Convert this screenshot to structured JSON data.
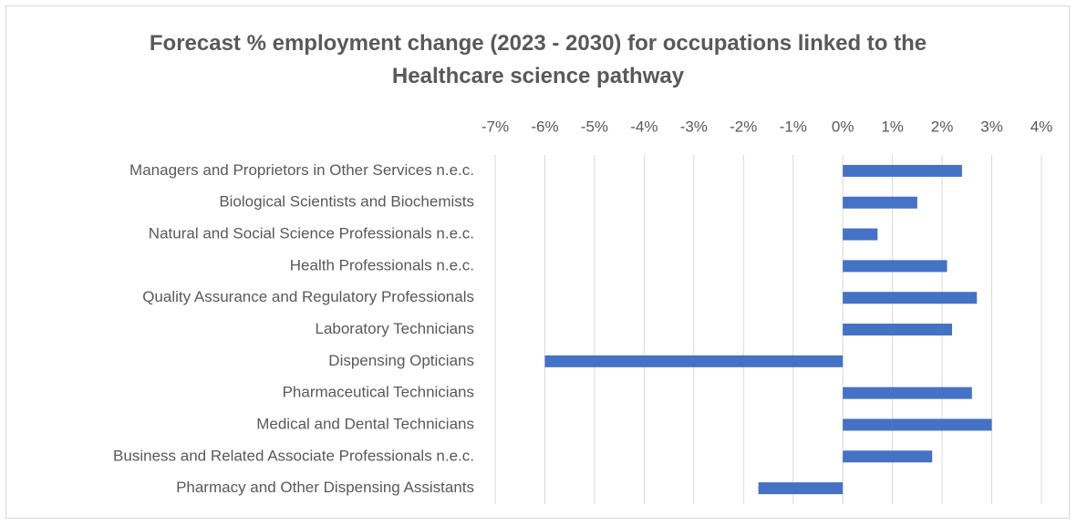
{
  "chart_data": {
    "type": "barh",
    "title": "Forecast % employment change (2023 - 2030) for occupations linked to the Healthcare science pathway",
    "categories": [
      "Managers and Proprietors in Other Services n.e.c.",
      "Biological Scientists and Biochemists",
      "Natural and Social Science Professionals n.e.c.",
      "Health Professionals n.e.c.",
      "Quality Assurance and Regulatory Professionals",
      "Laboratory Technicians",
      "Dispensing Opticians",
      "Pharmaceutical Technicians",
      "Medical and Dental Technicians",
      "Business and Related Associate Professionals n.e.c.",
      "Pharmacy and Other Dispensing Assistants"
    ],
    "values": [
      2.4,
      1.5,
      0.7,
      2.1,
      2.7,
      2.2,
      -6.0,
      2.6,
      3.0,
      1.8,
      -1.7
    ],
    "color": "#4472c4",
    "xlim": [
      -7,
      4
    ],
    "xticks": [
      {
        "value": -7,
        "label": "-7%"
      },
      {
        "value": -6,
        "label": "-6%"
      },
      {
        "value": -5,
        "label": "-5%"
      },
      {
        "value": -4,
        "label": "-4%"
      },
      {
        "value": -3,
        "label": "-3%"
      },
      {
        "value": -2,
        "label": "-2%"
      },
      {
        "value": -1,
        "label": "-1%"
      },
      {
        "value": 0,
        "label": "0%"
      },
      {
        "value": 1,
        "label": "1%"
      },
      {
        "value": 2,
        "label": "2%"
      },
      {
        "value": 3,
        "label": "3%"
      },
      {
        "value": 4,
        "label": "4%"
      }
    ],
    "grid": true
  }
}
